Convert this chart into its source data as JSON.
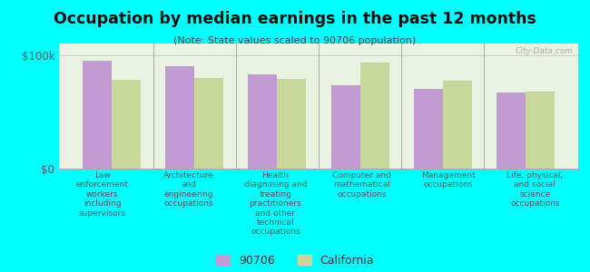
{
  "title": "Occupation by median earnings in the past 12 months",
  "subtitle": "(Note: State values scaled to 90706 population)",
  "background_color": "#00FFFF",
  "plot_bg_color": "#e8f4e1",
  "categories": [
    "Law\nenforcement\nworkers\nincluding\nsupervisors",
    "Architecture\nand\nengineering\noccupations",
    "Health\ndiagnosing and\ntreating\npractitioners\nand other\ntechnical\noccupations",
    "Computer and\nmathematical\noccupations",
    "Management\noccupations",
    "Life, physical,\nand social\nscience\noccupations"
  ],
  "values_90706": [
    95000,
    90000,
    83000,
    73000,
    70000,
    67000
  ],
  "values_california": [
    78000,
    80000,
    79000,
    93000,
    77000,
    68000
  ],
  "color_90706": "#c39bd3",
  "color_california": "#c8d89a",
  "ylim": [
    0,
    110000
  ],
  "yticks": [
    0,
    100000
  ],
  "ytick_labels": [
    "$0",
    "$100k"
  ],
  "legend_labels": [
    "90706",
    "California"
  ],
  "bar_width": 0.35,
  "watermark": "City-Data.com"
}
